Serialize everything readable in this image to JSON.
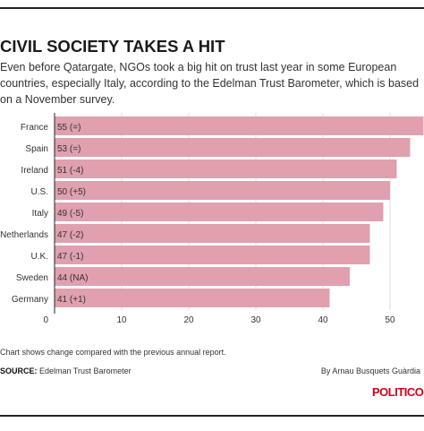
{
  "header": {
    "title": "CIVIL SOCIETY TAKES A HIT",
    "subtitle": "Even before Qatargate, NGOs took a big hit on trust last year in some European countries, especially Italy, according to the Edelman Trust Barometer, which is based on a November survey."
  },
  "footer": {
    "note": "Chart shows change compared with the previous annual report.",
    "source_label": "SOURCE:",
    "source_text": "Edelman Trust Barometer",
    "byline": "By Arnau Busquets Guàrdia",
    "logo": "POLITICO",
    "logo_color": "#d0021b"
  },
  "chart_data": {
    "type": "bar",
    "orientation": "horizontal",
    "categories": [
      "France",
      "Spain",
      "Ireland",
      "U.S.",
      "Italy",
      "Netherlands",
      "U.K.",
      "Sweden",
      "Germany"
    ],
    "values": [
      55,
      53,
      51,
      50,
      49,
      47,
      47,
      44,
      41
    ],
    "bar_labels": [
      "55 (=)",
      "53 (=)",
      "51 (-4)",
      "50 (+5)",
      "49 (-5)",
      "47 (-2)",
      "47 (-1)",
      "44 (NA)",
      "41 (+1)"
    ],
    "changes": [
      "=",
      "=",
      "-4",
      "+5",
      "-5",
      "-2",
      "-1",
      "NA",
      "+1"
    ],
    "xticks": [
      0,
      10,
      20,
      30,
      40,
      50
    ],
    "xlim": [
      0,
      55
    ],
    "bar_color": "#e0a0ae",
    "grid": true
  }
}
